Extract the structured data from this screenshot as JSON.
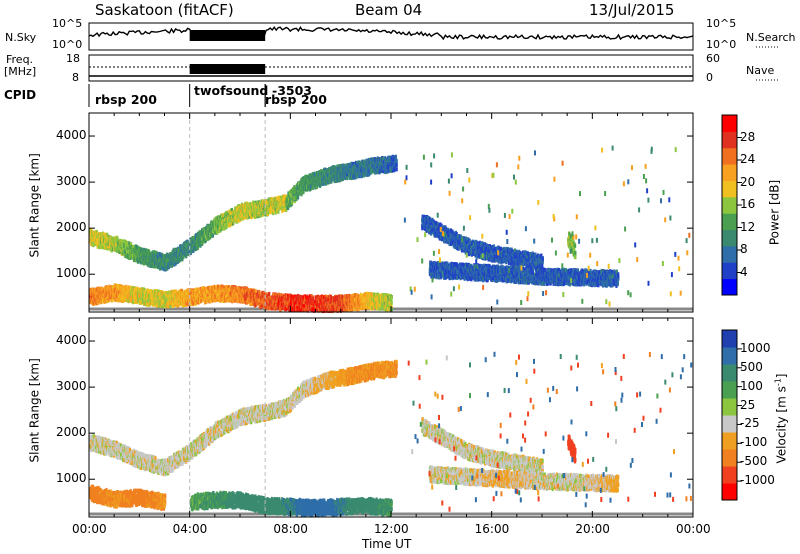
{
  "header": {
    "radar": "Saskatoon (fitACF)",
    "beam": "Beam 04",
    "date": "13/Jul/2015"
  },
  "noise_panel": {
    "left_label": "N.Sky",
    "right_label": "N.Search",
    "left_ticks": [
      "10^5",
      "10^0"
    ],
    "right_ticks": [
      "10^5",
      "10^0"
    ]
  },
  "freq_panel": {
    "left_label_1": "Freq.",
    "left_label_2": "[MHz]",
    "right_label": "Nave",
    "left_ticks": [
      "18",
      "8"
    ],
    "right_ticks": [
      "60",
      "0"
    ]
  },
  "cpid_panel": {
    "label": "CPID",
    "modes": [
      {
        "name": "rbsp 200",
        "start_hour": 0
      },
      {
        "name": "twofsound",
        "start_hour": 4.0
      },
      {
        "name": "-3503",
        "start_hour": 7.0
      },
      {
        "name": "rbsp 200",
        "start_hour": 7.0
      }
    ]
  },
  "time_axis": {
    "label": "Time UT",
    "ticks": [
      "00:00",
      "04:00",
      "08:00",
      "12:00",
      "16:00",
      "20:00",
      "00:00"
    ]
  },
  "chart_data": [
    {
      "type": "heatmap",
      "title": "",
      "parameter": "Power",
      "xlabel": "Time UT",
      "ylabel": "Slant Range [km]",
      "xlim": [
        0,
        24
      ],
      "ylim": [
        180,
        4500
      ],
      "yticks": [
        1000,
        2000,
        3000,
        4000
      ],
      "colorbar": {
        "label": "Power [dB]",
        "ticks": [
          4,
          8,
          12,
          16,
          20,
          24,
          28
        ],
        "range": [
          0,
          32
        ],
        "colors": [
          "#0000ff",
          "#2040c8",
          "#2f6ea8",
          "#3a8a70",
          "#4aa050",
          "#8cc63f",
          "#f0c020",
          "#f8a020",
          "#f07020",
          "#e03020",
          "#ff0000"
        ]
      },
      "scatter_bands": [
        {
          "t": [
            0,
            1.0,
            2.0,
            3.0,
            4.0,
            5.0,
            6.0,
            7.0,
            7.8
          ],
          "range": [
            1800,
            1650,
            1400,
            1250,
            1600,
            2050,
            2350,
            2450,
            2550
          ],
          "power": [
            18,
            16,
            12,
            10,
            10,
            14,
            18,
            16,
            18
          ]
        },
        {
          "t": [
            7.8,
            8.5,
            9.5,
            10.5,
            11.3,
            12.2
          ],
          "range": [
            2550,
            2950,
            3150,
            3250,
            3350,
            3400
          ],
          "power": [
            14,
            12,
            10,
            8,
            8,
            6
          ]
        },
        {
          "t": [
            0,
            1.0,
            2.0,
            3.0,
            4.0,
            5.0,
            6.0,
            7.0,
            8.0,
            9.0,
            10.0,
            11.0,
            12.0
          ],
          "range": [
            500,
            600,
            520,
            450,
            500,
            580,
            560,
            420,
            380,
            360,
            360,
            420,
            380
          ],
          "power": [
            24,
            22,
            18,
            18,
            22,
            22,
            24,
            26,
            28,
            28,
            26,
            20,
            16
          ]
        },
        {
          "t": [
            13.2,
            14.0,
            15.0,
            16.0,
            17.0,
            18.0
          ],
          "range": [
            2150,
            1900,
            1600,
            1450,
            1350,
            1250
          ],
          "power": [
            6,
            6,
            6,
            6,
            6,
            6
          ]
        },
        {
          "t": [
            13.5,
            15.0,
            16.5,
            18.0,
            19.5,
            21.0
          ],
          "range": [
            1100,
            1050,
            1000,
            950,
            930,
            900
          ],
          "power": [
            6,
            6,
            6,
            6,
            6,
            6
          ]
        },
        {
          "t": [
            19.0,
            19.3
          ],
          "range": [
            1800,
            1500
          ],
          "power": [
            16,
            14
          ]
        }
      ]
    },
    {
      "type": "heatmap",
      "title": "",
      "parameter": "Velocity",
      "xlabel": "Time UT",
      "ylabel": "Slant Range [km]",
      "xlim": [
        0,
        24
      ],
      "ylim": [
        180,
        4500
      ],
      "yticks": [
        1000,
        2000,
        3000,
        4000
      ],
      "colorbar": {
        "label": "Velocity [m s^-1]",
        "ticks": [
          "1000",
          "500",
          "100",
          "25",
          "-25",
          "-100",
          "-500",
          "-1000"
        ],
        "colors": [
          "#2040b0",
          "#2f6ea8",
          "#3a8a70",
          "#4aa050",
          "#8cc63f",
          "#c8c8c8",
          "#f0a020",
          "#f08020",
          "#f04020",
          "#ff0000"
        ]
      },
      "scatter_bands": [
        {
          "t": [
            0,
            1.0,
            2.0,
            3.0,
            4.0,
            5.0,
            6.0,
            7.0,
            7.8
          ],
          "range": [
            1800,
            1650,
            1400,
            1250,
            1600,
            2050,
            2350,
            2450,
            2550
          ],
          "velocity": [
            0,
            0,
            0,
            0,
            0,
            0,
            0,
            0,
            0
          ]
        },
        {
          "t": [
            7.8,
            8.5,
            9.5,
            10.5,
            11.3,
            12.2
          ],
          "range": [
            2550,
            2950,
            3150,
            3250,
            3350,
            3400
          ],
          "velocity": [
            0,
            0,
            -50,
            -100,
            -100,
            -100
          ]
        },
        {
          "t": [
            0,
            1.0,
            2.0,
            3.0
          ],
          "range": [
            700,
            560,
            600,
            500
          ],
          "velocity": [
            -150,
            -100,
            -150,
            -100
          ]
        },
        {
          "t": [
            4.0,
            5.0,
            6.0,
            7.0,
            8.0,
            9.0,
            10.0,
            11.0,
            12.0
          ],
          "range": [
            500,
            550,
            540,
            420,
            400,
            380,
            400,
            420,
            380
          ],
          "velocity": [
            80,
            100,
            150,
            200,
            300,
            400,
            300,
            150,
            100
          ]
        },
        {
          "t": [
            13.2,
            14.0,
            15.0,
            16.0,
            17.0,
            18.0
          ],
          "range": [
            2150,
            1900,
            1600,
            1450,
            1350,
            1250
          ],
          "velocity": [
            0,
            0,
            0,
            0,
            0,
            0
          ]
        },
        {
          "t": [
            13.5,
            15.0,
            16.5,
            18.0,
            19.5,
            21.0
          ],
          "range": [
            1100,
            1050,
            1000,
            950,
            930,
            900
          ],
          "velocity": [
            0,
            0,
            -50,
            0,
            0,
            -50
          ]
        },
        {
          "t": [
            19.0,
            19.3
          ],
          "range": [
            1800,
            1500
          ],
          "velocity": [
            -500,
            -500
          ]
        }
      ]
    }
  ]
}
